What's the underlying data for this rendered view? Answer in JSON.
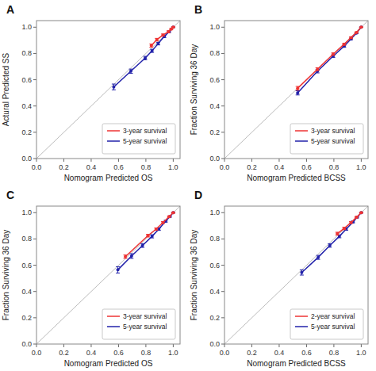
{
  "chart_data": [
    {
      "type": "line",
      "title": "A",
      "xlabel": "Nomogram Predicted  OS",
      "ylabel": "Actural Predicted SS",
      "series": [
        {
          "name": "3-year survival",
          "color": "#EE3333",
          "marker": "circle",
          "line_style": "solid",
          "x": [
            0.84,
            0.88,
            0.925,
            0.965,
            0.985,
            1.0
          ],
          "values": [
            0.86,
            0.905,
            0.94,
            0.965,
            0.985,
            1.0
          ],
          "errors": [
            0.012,
            0.01,
            0.008,
            0.007,
            0.005,
            0.003
          ]
        },
        {
          "name": "5-year survival",
          "color": "#2222AA",
          "marker": "circle",
          "line_style": "solid",
          "x": [
            0.565,
            0.69,
            0.795,
            0.845,
            0.89,
            0.935,
            0.97,
            1.0
          ],
          "values": [
            0.545,
            0.665,
            0.765,
            0.82,
            0.875,
            0.93,
            0.965,
            1.0
          ],
          "errors": [
            0.022,
            0.016,
            0.013,
            0.012,
            0.01,
            0.008,
            0.006,
            0.003
          ]
        }
      ],
      "xlim": [
        0.0,
        1.05
      ],
      "ylim": [
        0.0,
        1.05
      ],
      "xticks": [
        {
          "value": 0.0,
          "label": "0.0"
        },
        0.2,
        0.4,
        0.6,
        0.8,
        {
          "value": 1.0,
          "label": "1.0"
        }
      ],
      "yticks": [
        {
          "value": 0.0,
          "label": "0.0"
        },
        0.2,
        0.4,
        0.6,
        0.8,
        {
          "value": 1.0,
          "label": "1.0"
        }
      ],
      "grid": false,
      "legend": "lower right"
    },
    {
      "type": "line",
      "title": "B",
      "xlabel": "Nomogram Predicted  BCSS",
      "ylabel": "Fraction Surviving 36 Day",
      "series": [
        {
          "name": "3-year survival",
          "color": "#EE3333",
          "marker": "circle",
          "line_style": "solid",
          "x": [
            0.535,
            0.68,
            0.795,
            0.875,
            0.925,
            0.965,
            1.0
          ],
          "values": [
            0.535,
            0.68,
            0.795,
            0.87,
            0.92,
            0.96,
            1.0
          ],
          "errors": [
            0.014,
            0.011,
            0.009,
            0.007,
            0.006,
            0.004,
            0.002
          ]
        },
        {
          "name": "5-year survival",
          "color": "#2222AA",
          "marker": "circle",
          "line_style": "solid",
          "x": [
            0.535,
            0.68,
            0.795,
            0.875,
            0.925,
            0.965,
            1.0
          ],
          "values": [
            0.5,
            0.665,
            0.78,
            0.855,
            0.91,
            0.955,
            1.0
          ],
          "errors": [
            0.016,
            0.013,
            0.01,
            0.008,
            0.006,
            0.004,
            0.002
          ]
        }
      ],
      "xlim": [
        0.0,
        1.05
      ],
      "ylim": [
        0.0,
        1.05
      ],
      "xticks": [
        {
          "value": 0.0,
          "label": "0.0"
        },
        0.2,
        0.4,
        0.6,
        0.8,
        {
          "value": 1.0,
          "label": "1.0"
        }
      ],
      "yticks": [
        {
          "value": 0.0,
          "label": "0.0"
        },
        0.2,
        0.4,
        0.6,
        0.8,
        {
          "value": 1.0,
          "label": "1.0"
        }
      ],
      "grid": false,
      "legend": "lower right"
    },
    {
      "type": "line",
      "title": "C",
      "xlabel": "Nomogram Predicted  OS",
      "ylabel": "Fraction Surviving 36 Day",
      "series": [
        {
          "name": "3-year survival",
          "color": "#EE3333",
          "marker": "circle",
          "line_style": "solid",
          "x": [
            0.65,
            0.815,
            0.875,
            0.925,
            0.97,
            1.0
          ],
          "values": [
            0.665,
            0.825,
            0.875,
            0.925,
            0.97,
            1.0
          ],
          "errors": [
            0.013,
            0.01,
            0.008,
            0.007,
            0.005,
            0.003
          ]
        },
        {
          "name": "5-year survival",
          "color": "#2222AA",
          "marker": "circle",
          "line_style": "solid",
          "x": [
            0.595,
            0.695,
            0.775,
            0.845,
            0.895,
            0.945,
            0.975,
            1.0
          ],
          "values": [
            0.565,
            0.67,
            0.75,
            0.82,
            0.875,
            0.935,
            0.97,
            1.0
          ],
          "errors": [
            0.024,
            0.018,
            0.014,
            0.012,
            0.01,
            0.007,
            0.005,
            0.003
          ]
        }
      ],
      "xlim": [
        0.0,
        1.05
      ],
      "ylim": [
        0.0,
        1.05
      ],
      "xticks": [
        {
          "value": 0.0,
          "label": "0.0"
        },
        0.2,
        0.4,
        0.6,
        0.8,
        {
          "value": 1.0,
          "label": "1.0"
        }
      ],
      "yticks": [
        {
          "value": 0.0,
          "label": "0.0"
        },
        0.2,
        0.4,
        0.6,
        0.8,
        {
          "value": 1.0,
          "label": "1.0"
        }
      ],
      "grid": false,
      "legend": "lower right"
    },
    {
      "type": "line",
      "title": "D",
      "xlabel": "Nomogram Predicted  BCSS",
      "ylabel": "Fraction Surviving 36 Day",
      "series": [
        {
          "name": "2-year survival",
          "color": "#EE3333",
          "marker": "circle",
          "line_style": "solid",
          "x": [
            0.825,
            0.875,
            0.925,
            0.965,
            1.0
          ],
          "values": [
            0.84,
            0.88,
            0.925,
            0.965,
            1.0
          ],
          "errors": [
            0.011,
            0.009,
            0.007,
            0.005,
            0.003
          ]
        },
        {
          "name": "5-year survival",
          "color": "#2222AA",
          "marker": "circle",
          "line_style": "solid",
          "x": [
            0.565,
            0.685,
            0.77,
            0.84,
            0.89,
            0.94,
            0.97,
            1.0
          ],
          "values": [
            0.545,
            0.66,
            0.75,
            0.82,
            0.875,
            0.93,
            0.965,
            1.0
          ],
          "errors": [
            0.02,
            0.015,
            0.013,
            0.011,
            0.009,
            0.007,
            0.005,
            0.003
          ]
        }
      ],
      "xlim": [
        0.0,
        1.05
      ],
      "ylim": [
        0.0,
        1.05
      ],
      "xticks": [
        {
          "value": 0.0,
          "label": "0.0"
        },
        0.2,
        0.4,
        0.6,
        0.8,
        {
          "value": 1.0,
          "label": "1.0"
        }
      ],
      "yticks": [
        {
          "value": 0.0,
          "label": "0.0"
        },
        0.2,
        0.4,
        0.6,
        0.8,
        {
          "value": 1.0,
          "label": "1.0"
        }
      ],
      "grid": false,
      "legend": "lower right"
    }
  ]
}
